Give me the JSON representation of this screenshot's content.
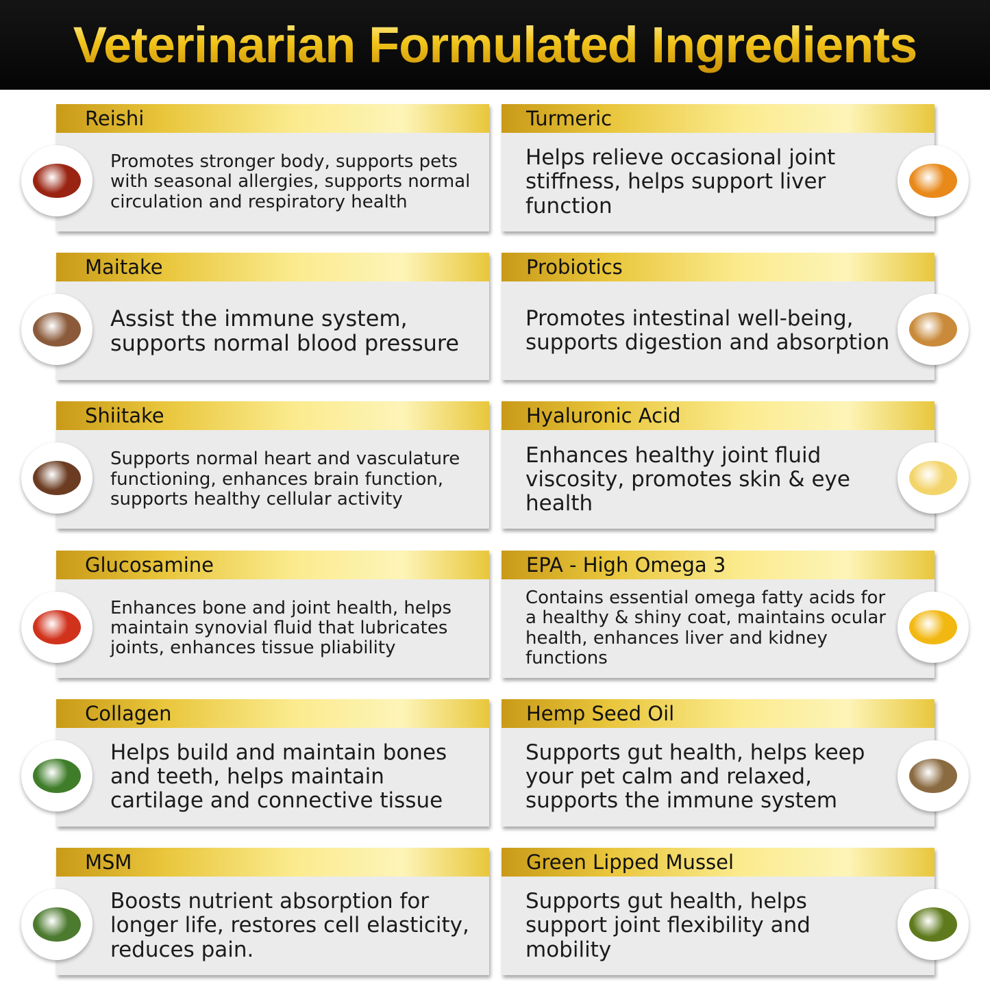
{
  "title": "Veterinarian Formulated Ingredients",
  "left": [
    {
      "name": "Reishi",
      "text": "Promotes stronger body, supports pets with seasonal allergies, supports normal circulation and respiratory health",
      "icon": "reishi-mushroom-icon",
      "color": "#9a2412",
      "size": 26
    },
    {
      "name": "Maitake",
      "text": "Assist the immune system, supports normal blood pressure",
      "icon": "maitake-mushroom-icon",
      "color": "#8a5a3a",
      "size": 32
    },
    {
      "name": "Shiitake",
      "text": "Supports normal heart and vasculature functioning, enhances brain function, supports healthy cellular activity",
      "icon": "shiitake-mushroom-icon",
      "color": "#6b3c22",
      "size": 26
    },
    {
      "name": "Glucosamine",
      "text": "Enhances bone and joint health, helps maintain synovial fluid that lubricates joints, enhances tissue pliability",
      "icon": "lobster-icon",
      "color": "#d0321c",
      "size": 26
    },
    {
      "name": "Collagen",
      "text": "Helps build and maintain bones and teeth, helps maintain cartilage and connective tissue",
      "icon": "leafy-greens-icon",
      "color": "#3f7d2a",
      "size": 31
    },
    {
      "name": "MSM",
      "text": "Boosts nutrient absorption for longer life, restores cell elasticity, reduces pain.",
      "icon": "herbs-mortar-icon",
      "color": "#4c7a2f",
      "size": 31
    }
  ],
  "right": [
    {
      "name": "Turmeric",
      "text": "Helps relieve occasional joint stiffness, helps support liver function",
      "icon": "turmeric-root-icon",
      "color": "#e8891a",
      "size": 31
    },
    {
      "name": "Probiotics",
      "text": "Promotes intestinal well-being, supports digestion and absorption",
      "icon": "probiotics-icon",
      "color": "#c98a3a",
      "size": 31
    },
    {
      "name": "Hyaluronic Acid",
      "text": "Enhances healthy joint fluid viscosity, promotes skin & eye health",
      "icon": "fluid-bowl-icon",
      "color": "#f3d46a",
      "size": 31
    },
    {
      "name": "EPA - High Omega 3",
      "text": "Contains essential omega fatty acids for a healthy & shiny coat, maintains ocular health, enhances liver and kidney functions",
      "icon": "omega-3-icon",
      "color": "#f2b812",
      "size": 26
    },
    {
      "name": "Hemp Seed Oil",
      "text": "Supports gut health, helps keep your pet calm and relaxed, supports the immune system",
      "icon": "hemp-seeds-icon",
      "color": "#8a6a40",
      "size": 31
    },
    {
      "name": "Green Lipped Mussel",
      "text": "Supports gut health, helps support joint flexibility and mobility",
      "icon": "mussel-icon",
      "color": "#5f7a1c",
      "size": 31
    }
  ]
}
